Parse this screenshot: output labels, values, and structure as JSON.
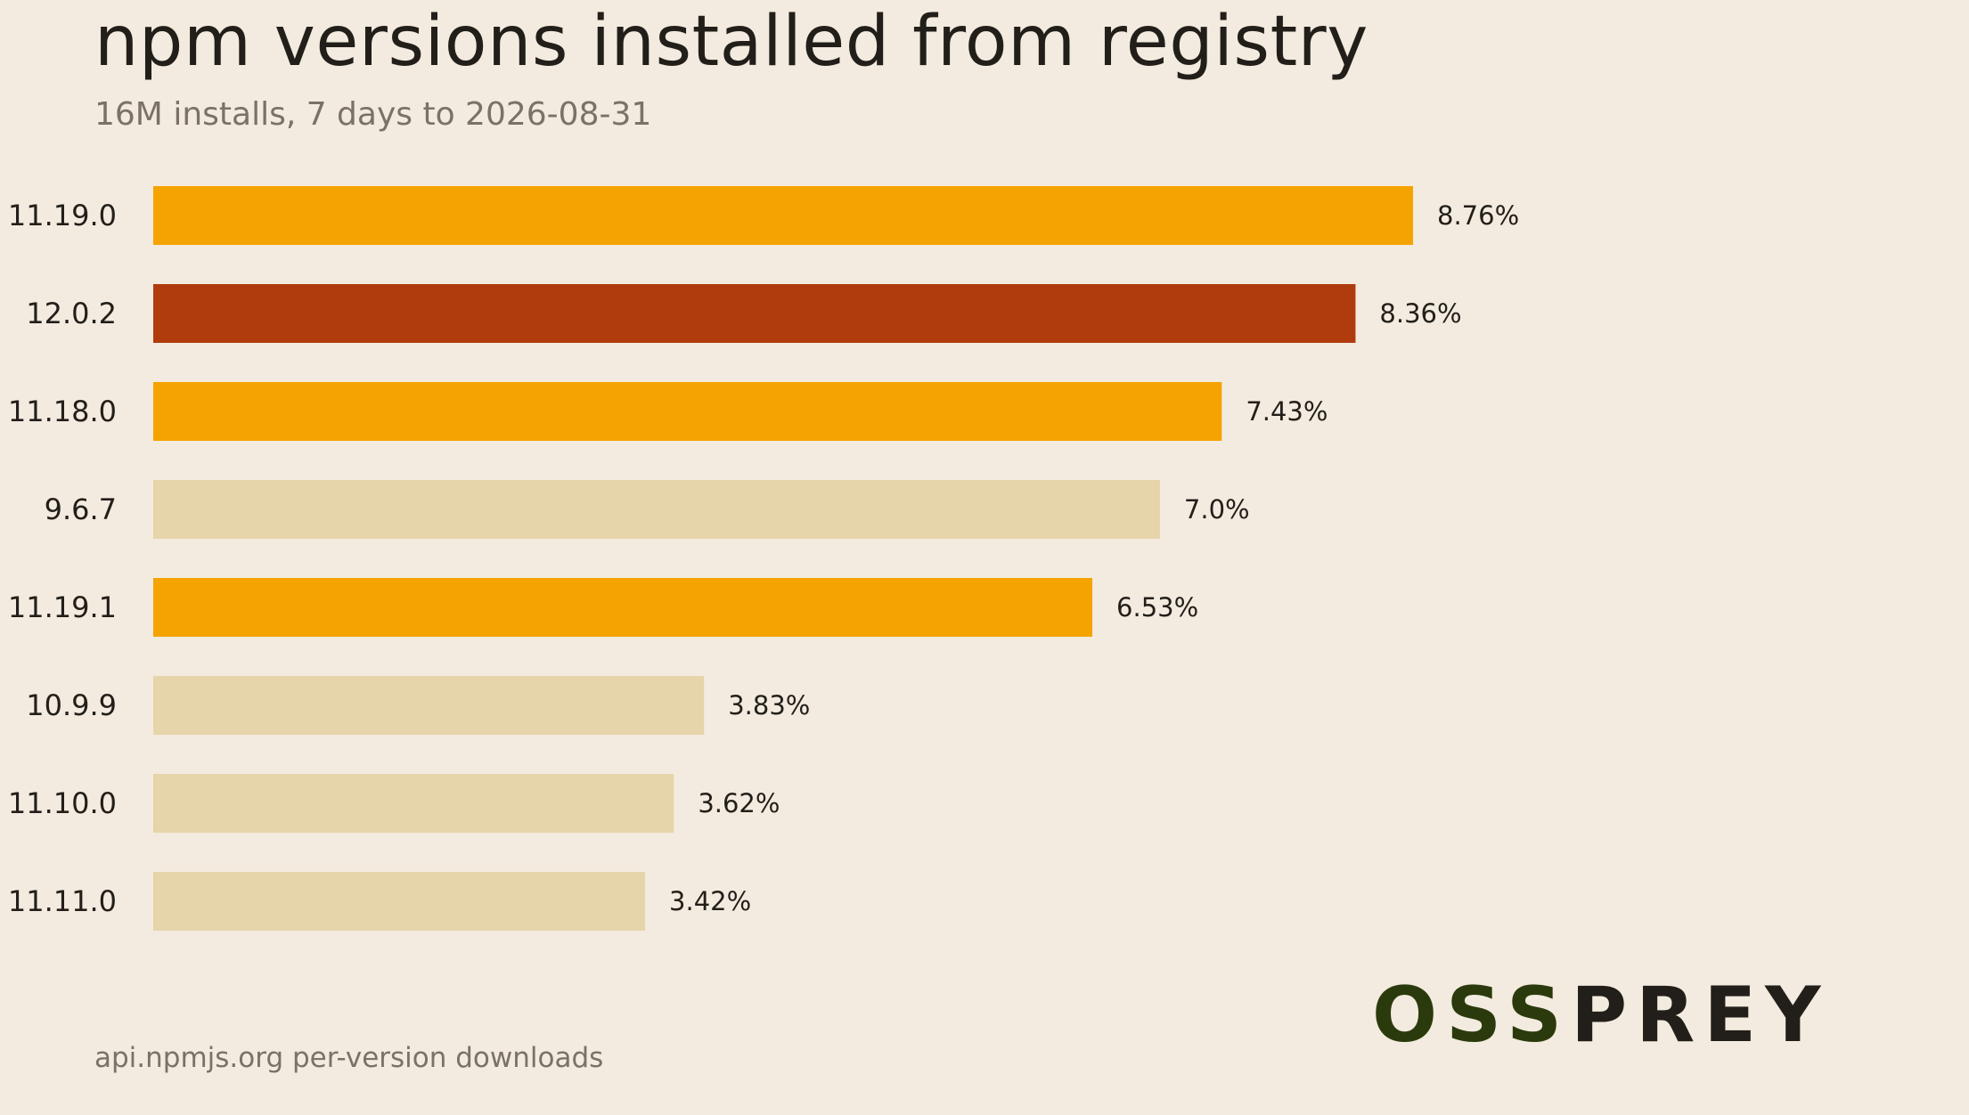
{
  "title": "npm versions installed from registry",
  "subtitle": "16M installs, 7 days to 2026-08-31",
  "source": "api.npmjs.org per-version downloads",
  "logo": {
    "part1": "OSS",
    "part2": "PREY"
  },
  "colors": {
    "background": "#f3ebdf",
    "highlight": "#f5a300",
    "latest": "#b03c0e",
    "other": "#e6d5aa"
  },
  "chart_data": {
    "type": "bar",
    "orientation": "horizontal",
    "categories": [
      "11.19.0",
      "12.0.2",
      "11.18.0",
      "9.6.7",
      "11.19.1",
      "10.9.9",
      "11.10.0",
      "11.11.0"
    ],
    "values": [
      8.76,
      8.36,
      7.43,
      7.0,
      6.53,
      3.83,
      3.62,
      3.42
    ],
    "labels": [
      "8.76%",
      "8.36%",
      "7.43%",
      "7.0%",
      "6.53%",
      "3.83%",
      "3.62%",
      "3.42%"
    ],
    "bar_colors": [
      "#f5a300",
      "#b03c0e",
      "#f5a300",
      "#e6d5aa",
      "#f5a300",
      "#e6d5aa",
      "#e6d5aa",
      "#e6d5aa"
    ],
    "xlim": [
      0,
      8.76
    ],
    "unit": "%",
    "grid": false,
    "legend": "none"
  }
}
